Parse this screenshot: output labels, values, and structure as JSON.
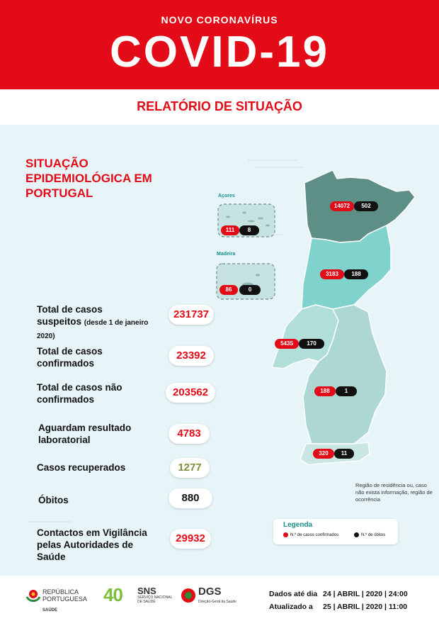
{
  "header": {
    "kicker": "NOVO CORONAVÍRUS",
    "headline": "COVID-19",
    "subtitle": "RELATÓRIO DE SITUAÇÃO"
  },
  "section_title": "SITUAÇÃO EPIDEMIOLÓGICA EM PORTUGAL",
  "stats": [
    {
      "label_line1": "Total de casos",
      "label_line2": "suspeitos",
      "note": "(desde 1 de janeiro",
      "note2": "2020)",
      "value": "231737",
      "color": "#e30b17"
    },
    {
      "label_line1": "Total de casos",
      "label_line2": "confirmados",
      "value": "23392",
      "color": "#e30b17"
    },
    {
      "label_line1": "Total de casos não",
      "label_line2": "confirmados",
      "value": "203562",
      "color": "#e30b17"
    },
    {
      "label_line1": "Aguardam resultado",
      "label_line2": "laboratorial",
      "value": "4783",
      "color": "#e30b17"
    },
    {
      "label_line1": "Casos recuperados",
      "value": "1277",
      "color": "#7f8f3a"
    },
    {
      "label_line1": "Óbitos",
      "value": "880",
      "color": "#111111"
    },
    {
      "label_line1": "Contactos em Vigilância",
      "label_line2": "pelas Autoridades de",
      "label_line3": "Saúde",
      "value": "29932",
      "color": "#e30b17"
    }
  ],
  "map": {
    "islands": [
      {
        "name": "Açores",
        "cases": "111",
        "deaths": "8"
      },
      {
        "name": "Madeira",
        "cases": "86",
        "deaths": "0"
      }
    ],
    "regions": [
      {
        "cases": "14072",
        "deaths": "502"
      },
      {
        "cases": "3183",
        "deaths": "188"
      },
      {
        "cases": "5435",
        "deaths": "170"
      },
      {
        "cases": "188",
        "deaths": "1"
      },
      {
        "cases": "320",
        "deaths": "11"
      }
    ],
    "region_note": "Região de residência ou, caso não exista informação, região de ocorrência"
  },
  "legend": {
    "title": "Legenda",
    "cases_label": "N.º de casos confirmados",
    "deaths_label": "N.º de óbitos"
  },
  "footer": {
    "republica": "REPÚBLICA",
    "portuguesa": "PORTUGUESA",
    "saude": "SAÚDE",
    "forty": "40",
    "sns": "SNS",
    "sns_sub1": "SERVIÇO NACIONAL",
    "sns_sub2": "DE SAÚDE",
    "dgs": "DGS",
    "dgs_sub": "Direção-Geral da Saúde",
    "data_label": "Dados até dia",
    "data_value": "24 | ABRIL | 2020 | 24:00",
    "update_label": "Atualizado a",
    "update_value": "25 | ABRIL | 2020 | 11:00"
  }
}
